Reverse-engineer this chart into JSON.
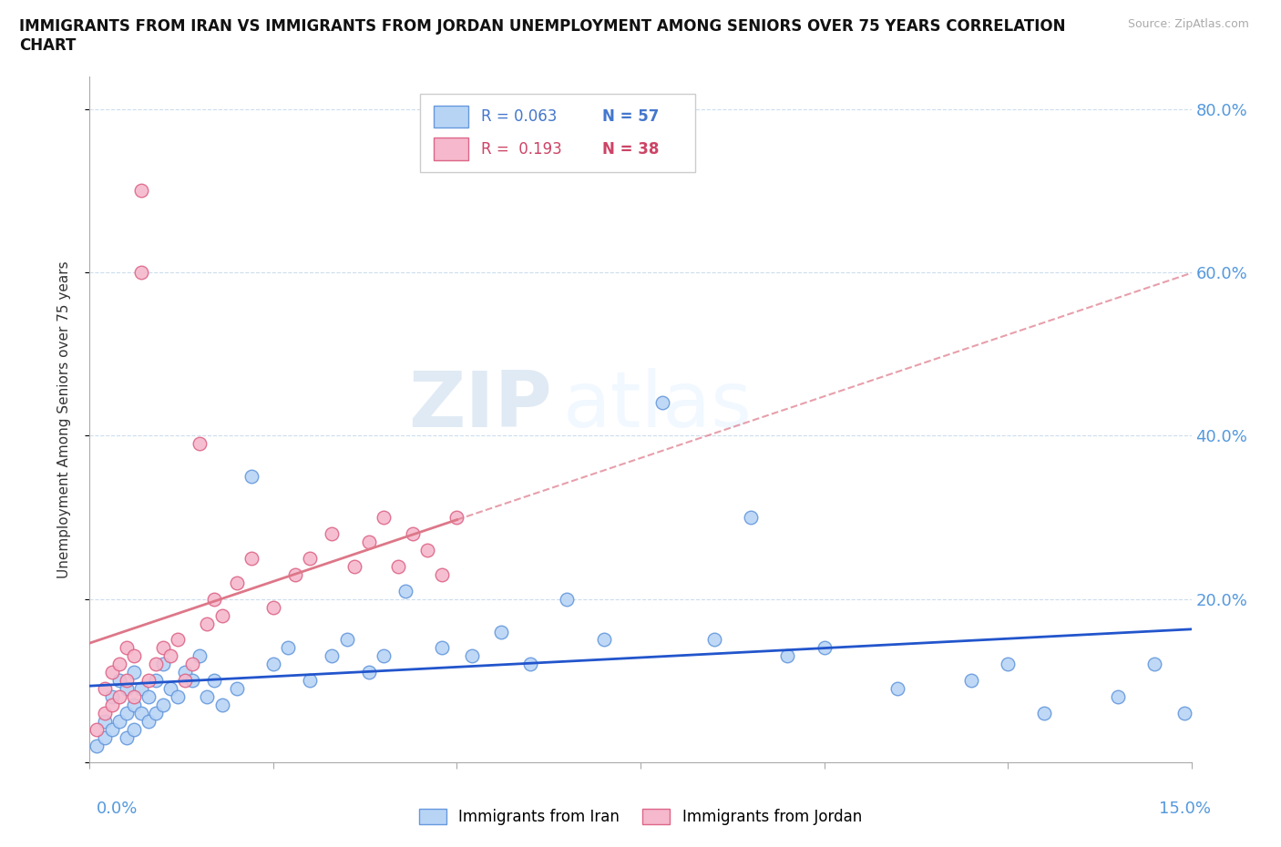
{
  "title": "IMMIGRANTS FROM IRAN VS IMMIGRANTS FROM JORDAN UNEMPLOYMENT AMONG SENIORS OVER 75 YEARS CORRELATION\nCHART",
  "source_text": "Source: ZipAtlas.com",
  "ylabel": "Unemployment Among Seniors over 75 years",
  "xmin": 0.0,
  "xmax": 0.15,
  "ymin": 0.0,
  "ymax": 0.84,
  "iran_R": 0.063,
  "iran_N": 57,
  "jordan_R": 0.193,
  "jordan_N": 38,
  "legend_iran_label": "Immigrants from Iran",
  "legend_jordan_label": "Immigrants from Jordan",
  "iran_color": "#b8d4f5",
  "iran_edge_color": "#6699dd",
  "jordan_color": "#f5b8cc",
  "jordan_edge_color": "#dd6688",
  "iran_line_color": "#2255cc",
  "jordan_line_color": "#dd7788",
  "watermark_zip": "ZIP",
  "watermark_atlas": "atlas",
  "grid_color": "#ccddee",
  "iran_x": [
    0.001,
    0.002,
    0.002,
    0.003,
    0.003,
    0.004,
    0.004,
    0.005,
    0.005,
    0.005,
    0.006,
    0.006,
    0.006,
    0.007,
    0.007,
    0.008,
    0.008,
    0.009,
    0.009,
    0.01,
    0.01,
    0.011,
    0.012,
    0.013,
    0.014,
    0.015,
    0.016,
    0.017,
    0.018,
    0.02,
    0.022,
    0.025,
    0.027,
    0.03,
    0.033,
    0.035,
    0.038,
    0.04,
    0.043,
    0.048,
    0.052,
    0.056,
    0.06,
    0.065,
    0.07,
    0.078,
    0.085,
    0.09,
    0.095,
    0.1,
    0.11,
    0.12,
    0.125,
    0.13,
    0.14,
    0.145,
    0.149
  ],
  "iran_y": [
    0.02,
    0.03,
    0.05,
    0.04,
    0.08,
    0.05,
    0.1,
    0.03,
    0.06,
    0.09,
    0.04,
    0.07,
    0.11,
    0.06,
    0.09,
    0.05,
    0.08,
    0.06,
    0.1,
    0.07,
    0.12,
    0.09,
    0.08,
    0.11,
    0.1,
    0.13,
    0.08,
    0.1,
    0.07,
    0.09,
    0.35,
    0.12,
    0.14,
    0.1,
    0.13,
    0.15,
    0.11,
    0.13,
    0.21,
    0.14,
    0.13,
    0.16,
    0.12,
    0.2,
    0.15,
    0.44,
    0.15,
    0.3,
    0.13,
    0.14,
    0.09,
    0.1,
    0.12,
    0.06,
    0.08,
    0.12,
    0.06
  ],
  "jordan_x": [
    0.001,
    0.002,
    0.002,
    0.003,
    0.003,
    0.004,
    0.004,
    0.005,
    0.005,
    0.006,
    0.006,
    0.007,
    0.007,
    0.008,
    0.009,
    0.01,
    0.011,
    0.012,
    0.013,
    0.014,
    0.015,
    0.016,
    0.017,
    0.018,
    0.02,
    0.022,
    0.025,
    0.028,
    0.03,
    0.033,
    0.036,
    0.038,
    0.04,
    0.042,
    0.044,
    0.046,
    0.048,
    0.05
  ],
  "jordan_y": [
    0.04,
    0.06,
    0.09,
    0.07,
    0.11,
    0.08,
    0.12,
    0.1,
    0.14,
    0.08,
    0.13,
    0.7,
    0.6,
    0.1,
    0.12,
    0.14,
    0.13,
    0.15,
    0.1,
    0.12,
    0.39,
    0.17,
    0.2,
    0.18,
    0.22,
    0.25,
    0.19,
    0.23,
    0.25,
    0.28,
    0.24,
    0.27,
    0.3,
    0.24,
    0.28,
    0.26,
    0.23,
    0.3
  ]
}
